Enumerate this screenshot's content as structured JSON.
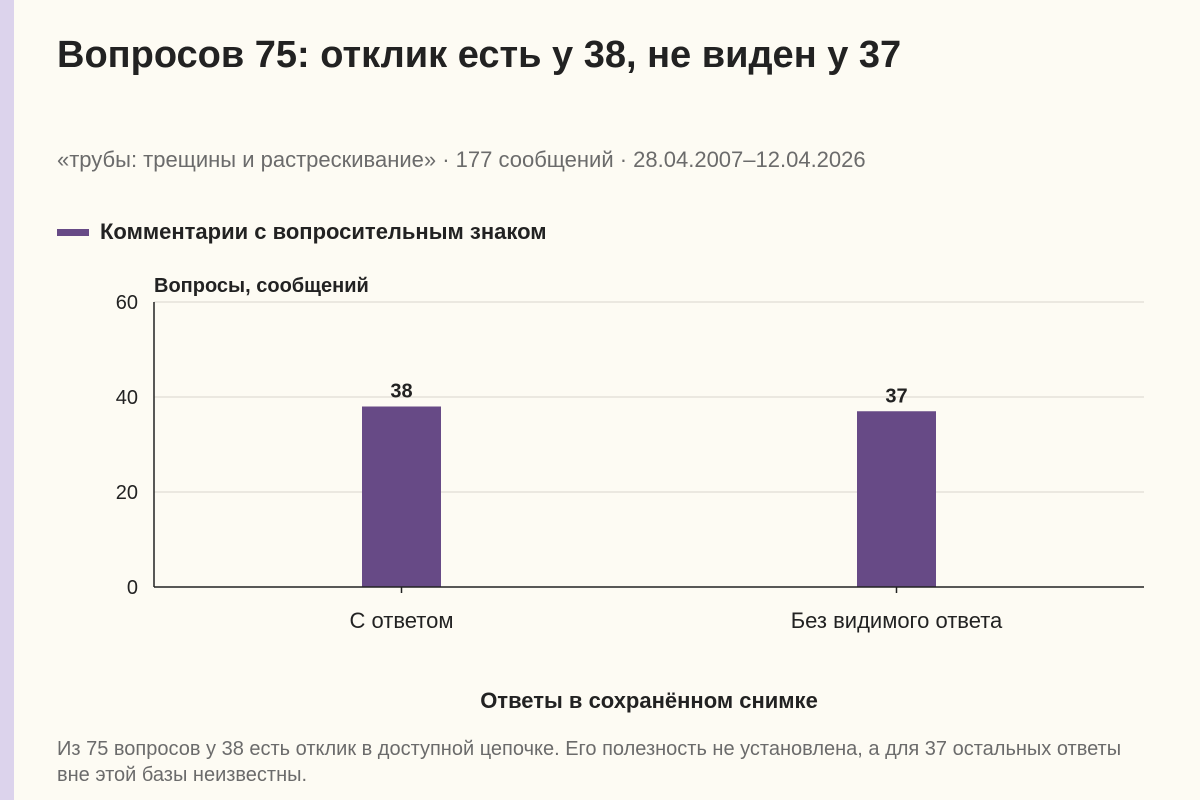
{
  "header": {
    "title": "Вопросов 75: отклик есть у 38, не виден у 37",
    "subtitle": "«трубы: трещины и растрескивание» · 177 сообщений · 28.04.2007–12.04.2026"
  },
  "legend": {
    "label": "Комментарии с вопросительным знаком",
    "color": "#674a86"
  },
  "chart_data": {
    "type": "bar",
    "categories": [
      "С ответом",
      "Без видимого ответа"
    ],
    "series": [
      {
        "name": "Комментарии с вопросительным знаком",
        "values": [
          38,
          37
        ]
      }
    ],
    "value_labels": [
      "38",
      "37"
    ],
    "ylabel": "Вопросы, сообщений",
    "xlabel": "Ответы в сохранённом снимке",
    "ylim": [
      0,
      60
    ],
    "yticks": [
      0,
      20,
      40,
      60
    ],
    "grid": true,
    "legend_position": "top-left",
    "bar_color": "#674a86"
  },
  "caption": "Из 75 вопросов у 38 есть отклик в доступной цепочке. Его полезность не установлена, а для 37 остальных ответы вне этой базы неизвестны."
}
